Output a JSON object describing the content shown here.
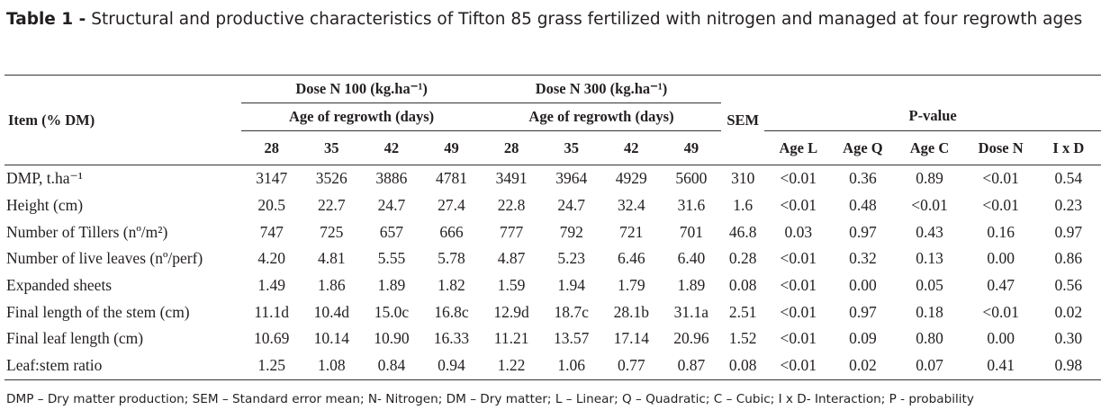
{
  "title": {
    "label": "Table 1 -",
    "text": "Structural and productive characteristics of Tifton 85 grass fertilized with nitrogen and managed at four regrowth ages"
  },
  "table": {
    "item_header": "Item (% DM)",
    "groups": [
      {
        "dose": "Dose N 100 (kg.ha⁻¹)",
        "age": "Age of regrowth (days)",
        "days": [
          "28",
          "35",
          "42",
          "49"
        ]
      },
      {
        "dose": "Dose N 300 (kg.ha⁻¹)",
        "age": "Age of regrowth (days)",
        "days": [
          "28",
          "35",
          "42",
          "49"
        ]
      }
    ],
    "sem_header": "SEM",
    "pvalue_header": "P-value",
    "pvalue_columns": [
      "Age L",
      "Age Q",
      "Age C",
      "Dose N",
      "I x D"
    ],
    "rows": [
      {
        "item": "DMP, t.ha⁻¹",
        "values": [
          "3147",
          "3526",
          "3886",
          "4781",
          "3491",
          "3964",
          "4929",
          "5600"
        ],
        "sem": "310",
        "p": [
          "<0.01",
          "0.36",
          "0.89",
          "<0.01",
          "0.54"
        ]
      },
      {
        "item": "Height (cm)",
        "values": [
          "20.5",
          "22.7",
          "24.7",
          "27.4",
          "22.8",
          "24.7",
          "32.4",
          "31.6"
        ],
        "sem": "1.6",
        "p": [
          "<0.01",
          "0.48",
          "<0.01",
          "<0.01",
          "0.23"
        ]
      },
      {
        "item": "Number of Tillers (nº/m²)",
        "values": [
          "747",
          "725",
          "657",
          "666",
          "777",
          "792",
          "721",
          "701"
        ],
        "sem": "46.8",
        "p": [
          "0.03",
          "0.97",
          "0.43",
          "0.16",
          "0.97"
        ]
      },
      {
        "item": "Number of live leaves (nº/perf)",
        "values": [
          "4.20",
          "4.81",
          "5.55",
          "5.78",
          "4.87",
          "5.23",
          "6.46",
          "6.40"
        ],
        "sem": "0.28",
        "p": [
          "<0.01",
          "0.32",
          "0.13",
          "0.00",
          "0.86"
        ]
      },
      {
        "item": "Expanded sheets",
        "values": [
          "1.49",
          "1.86",
          "1.89",
          "1.82",
          "1.59",
          "1.94",
          "1.79",
          "1.89"
        ],
        "sem": "0.08",
        "p": [
          "<0.01",
          "0.00",
          "0.05",
          "0.47",
          "0.56"
        ]
      },
      {
        "item": "Final length of the stem (cm)",
        "values": [
          "11.1d",
          "10.4d",
          "15.0c",
          "16.8c",
          "12.9d",
          "18.7c",
          "28.1b",
          "31.1a"
        ],
        "sem": "2.51",
        "p": [
          "<0.01",
          "0.97",
          "0.18",
          "<0.01",
          "0.02"
        ]
      },
      {
        "item": "Final leaf length (cm)",
        "values": [
          "10.69",
          "10.14",
          "10.90",
          "16.33",
          "11.21",
          "13.57",
          "17.14",
          "20.96"
        ],
        "sem": "1.52",
        "p": [
          "<0.01",
          "0.09",
          "0.80",
          "0.00",
          "0.30"
        ]
      },
      {
        "item": "Leaf:stem ratio",
        "values": [
          "1.25",
          "1.08",
          "0.84",
          "0.94",
          "1.22",
          "1.06",
          "0.77",
          "0.87"
        ],
        "sem": "0.08",
        "p": [
          "<0.01",
          "0.02",
          "0.07",
          "0.41",
          "0.98"
        ]
      }
    ]
  },
  "footnote": "DMP – Dry matter production; SEM – Standard error mean; N- Nitrogen; DM – Dry matter; L – Linear; Q – Quadratic; C – Cubic; I x D- Interaction; P - probability"
}
